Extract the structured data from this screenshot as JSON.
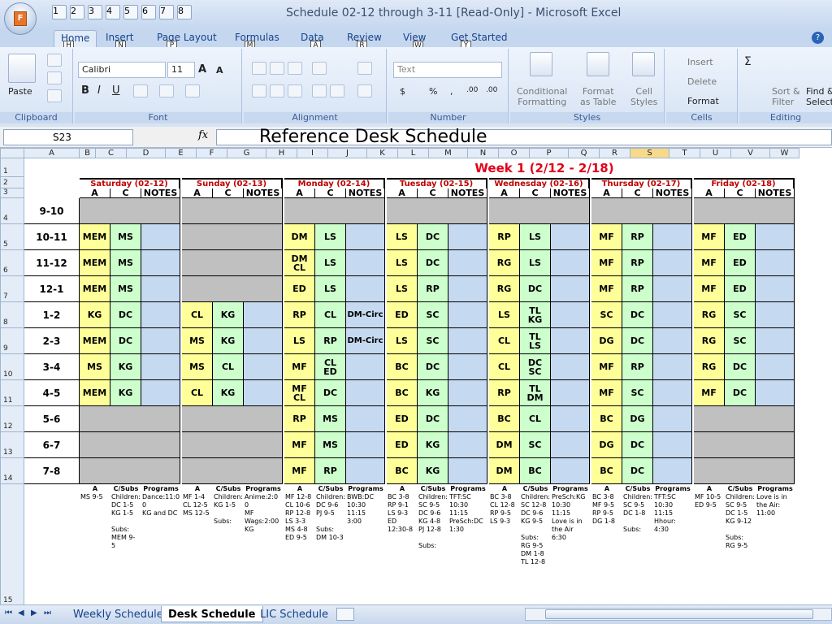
{
  "window_title": "Schedule 02-12 through 3-11  [Read-Only] - Microsoft Excel",
  "office_button_key": "F",
  "quick_access_keys": [
    "1",
    "2",
    "3",
    "4",
    "5",
    "6",
    "7",
    "8"
  ],
  "ribbon_tabs": [
    {
      "label": "Home",
      "key": "H"
    },
    {
      "label": "Insert",
      "key": "N"
    },
    {
      "label": "Page Layout",
      "key": "P"
    },
    {
      "label": "Formulas",
      "key": "M"
    },
    {
      "label": "Data",
      "key": "A"
    },
    {
      "label": "Review",
      "key": "R"
    },
    {
      "label": "View",
      "key": "W"
    },
    {
      "label": "Get Started",
      "key": "Y"
    }
  ],
  "help_icon": "help-icon",
  "ribbon": {
    "clipboard": {
      "paste_label": "Paste",
      "group_label": "Clipboard"
    },
    "font": {
      "font_name": "Calibri",
      "font_size": "11",
      "bold": "B",
      "italic": "I",
      "underline": "U",
      "grow": "A",
      "shrink": "A",
      "group_label": "Font"
    },
    "alignment": {
      "group_label": "Alignment"
    },
    "number": {
      "format": "Text",
      "currency": "$",
      "percent": "%",
      "comma": ",",
      "inc_decimal": ".00",
      "dec_decimal": ".00",
      "group_label": "Number"
    },
    "styles": {
      "conditional": "Conditional\nFormatting",
      "format_table": "Format\nas Table",
      "cell_styles": "Cell\nStyles",
      "group_label": "Styles"
    },
    "cells": {
      "insert": "Insert",
      "delete": "Delete",
      "format": "Format",
      "group_label": "Cells"
    },
    "editing": {
      "sigma": "Σ",
      "sort": "Sort &\nFilter",
      "find": "Find &\nSelect",
      "group_label": "Editing"
    }
  },
  "formula_bar": {
    "name_box": "S23",
    "fx": "fx",
    "content": "Reference Desk Schedule"
  },
  "columns": [
    "A",
    "B",
    "C",
    "D",
    "E",
    "F",
    "G",
    "H",
    "I",
    "J",
    "K",
    "L",
    "M",
    "N",
    "O",
    "P",
    "Q",
    "R",
    "S",
    "T",
    "U",
    "V",
    "W"
  ],
  "selected_column": "S",
  "rows": [
    "1",
    "2",
    "3",
    "4",
    "5",
    "6",
    "7",
    "8",
    "9",
    "10",
    "11",
    "12",
    "13",
    "14",
    "15"
  ],
  "week_title": "Week 1 (2/12 - 2/18)",
  "days": [
    "Saturday (02-12)",
    "Sunday (02-13)",
    "Monday (02-14)",
    "Tuesday (02-15)",
    "Wednesday (02-16)",
    "Thursday (02-17)",
    "Friday (02-18)"
  ],
  "sub_headers": [
    "A",
    "C",
    "NOTES"
  ],
  "times": [
    "9-10",
    "10-11",
    "11-12",
    "12-1",
    "1-2",
    "2-3",
    "3-4",
    "4-5",
    "5-6",
    "6-7",
    "7-8"
  ],
  "grid": [
    [
      [
        "",
        "",
        ""
      ],
      [
        "",
        "",
        ""
      ],
      [
        "",
        "",
        ""
      ],
      [
        "",
        "",
        ""
      ],
      [
        "",
        "",
        ""
      ],
      [
        "",
        "",
        ""
      ],
      [
        "",
        "",
        ""
      ]
    ],
    [
      [
        "MEM",
        "MS",
        ""
      ],
      [
        "",
        "",
        ""
      ],
      [
        "DM",
        "LS",
        ""
      ],
      [
        "LS",
        "DC",
        ""
      ],
      [
        "RP",
        "LS",
        ""
      ],
      [
        "MF",
        "RP",
        ""
      ],
      [
        "MF",
        "ED",
        ""
      ]
    ],
    [
      [
        "MEM",
        "MS",
        ""
      ],
      [
        "",
        "",
        ""
      ],
      [
        "DM\nCL",
        "LS",
        ""
      ],
      [
        "LS",
        "DC",
        ""
      ],
      [
        "RG",
        "LS",
        ""
      ],
      [
        "MF",
        "RP",
        ""
      ],
      [
        "MF",
        "ED",
        ""
      ]
    ],
    [
      [
        "MEM",
        "MS",
        ""
      ],
      [
        "",
        "",
        ""
      ],
      [
        "ED",
        "LS",
        ""
      ],
      [
        "LS",
        "RP",
        ""
      ],
      [
        "RG",
        "DC",
        ""
      ],
      [
        "MF",
        "RP",
        ""
      ],
      [
        "MF",
        "ED",
        ""
      ]
    ],
    [
      [
        "KG",
        "DC",
        ""
      ],
      [
        "CL",
        "KG",
        ""
      ],
      [
        "RP",
        "CL",
        "DM-Circ"
      ],
      [
        "ED",
        "SC",
        ""
      ],
      [
        "LS",
        "TL\nKG",
        ""
      ],
      [
        "SC",
        "DC",
        ""
      ],
      [
        "RG",
        "SC",
        ""
      ]
    ],
    [
      [
        "MEM",
        "DC",
        ""
      ],
      [
        "MS",
        "KG",
        ""
      ],
      [
        "LS",
        "RP",
        "DM-Circ"
      ],
      [
        "LS",
        "SC",
        ""
      ],
      [
        "CL",
        "TL\nLS",
        ""
      ],
      [
        "DG",
        "DC",
        ""
      ],
      [
        "RG",
        "SC",
        ""
      ]
    ],
    [
      [
        "MS",
        "KG",
        ""
      ],
      [
        "MS",
        "CL",
        ""
      ],
      [
        "MF",
        "CL\nED",
        ""
      ],
      [
        "BC",
        "DC",
        ""
      ],
      [
        "CL",
        "DC\nSC",
        ""
      ],
      [
        "MF",
        "RP",
        ""
      ],
      [
        "RG",
        "DC",
        ""
      ]
    ],
    [
      [
        "MEM",
        "KG",
        ""
      ],
      [
        "CL",
        "KG",
        ""
      ],
      [
        "MF\nCL",
        "DC",
        ""
      ],
      [
        "BC",
        "KG",
        ""
      ],
      [
        "RP",
        "TL\nDM",
        ""
      ],
      [
        "MF",
        "SC",
        ""
      ],
      [
        "MF",
        "DC",
        ""
      ]
    ],
    [
      [
        "",
        "",
        ""
      ],
      [
        "",
        "",
        ""
      ],
      [
        "RP",
        "MS",
        ""
      ],
      [
        "ED",
        "DC",
        ""
      ],
      [
        "BC",
        "CL",
        ""
      ],
      [
        "BC",
        "DG",
        ""
      ],
      [
        "",
        "",
        ""
      ]
    ],
    [
      [
        "",
        "",
        ""
      ],
      [
        "",
        "",
        ""
      ],
      [
        "MF",
        "MS",
        ""
      ],
      [
        "ED",
        "KG",
        ""
      ],
      [
        "DM",
        "SC",
        ""
      ],
      [
        "DG",
        "DC",
        ""
      ],
      [
        "",
        "",
        ""
      ]
    ],
    [
      [
        "",
        "",
        ""
      ],
      [
        "",
        "",
        ""
      ],
      [
        "MF",
        "RP",
        ""
      ],
      [
        "BC",
        "KG",
        ""
      ],
      [
        "DM",
        "BC",
        ""
      ],
      [
        "BC",
        "DC",
        ""
      ],
      [
        "",
        "",
        ""
      ]
    ]
  ],
  "footer_headers": [
    "A",
    "C/Subs",
    "Programs"
  ],
  "footer": [
    [
      "MS 9-5",
      "Children:\nDC 1-5\nKG 1-5\n\nSubs:\nMEM 9-\n5",
      "Dance:11:0\n0\nKG and DC"
    ],
    [
      "MF 1-4\nCL 12-5\nMS 12-5",
      "Children:\nKG 1-5\n\nSubs:",
      "Anime:2:0\n0\nMF\nWags:2:00\nKG"
    ],
    [
      "MF 12-8\nCL 10-6\nRP 12-8\nLS 3-3\nMS 4-8\nED 9-5",
      "Children:\nDC 9-6\nPJ 9-5\n\nSubs:\nDM 10-3",
      "BWB:DC\n10:30\n11:15\n3:00"
    ],
    [
      "BC 3-8\nRP 9-1\nLS 9-3\nED\n12:30-8",
      "Children:\nSC 9-5\nDC 9-6\nKG 4-8\nPJ 12-8\n\nSubs:",
      "TFT:SC\n10:30\n11:15\nPreSch:DC\n1:30"
    ],
    [
      "BC 3-8\nCL 12-8\nRP 9-5\nLS 9-3",
      "Children:\nSC 12-8\nDC 9-6\nKG 9-5\n\nSubs:\nRG 9-5\nDM 1-8\nTL 12-8",
      "PreSch:KG\n10:30\n11:15\nLove is in\nthe Air\n6:30"
    ],
    [
      "BC 3-8\nMF 9-5\nRP 9-5\nDG 1-8",
      "Children:\nSC 9-5\nDC 1-8\n\nSubs:",
      "TFT:SC\n10:30\n11:15\nHhour:\n4:30"
    ],
    [
      "MF 10-5\nED 9-5",
      "Children:\nSC 9-5\nDC 1-5\nKG 9-12\n\nSubs:\nRG 9-5",
      "Love is in\nthe Air:\n11:00"
    ]
  ],
  "sheet_tabs": [
    "Weekly Schedule",
    "Desk Schedule",
    "LIC Schedule"
  ],
  "active_sheet": "Desk Schedule"
}
